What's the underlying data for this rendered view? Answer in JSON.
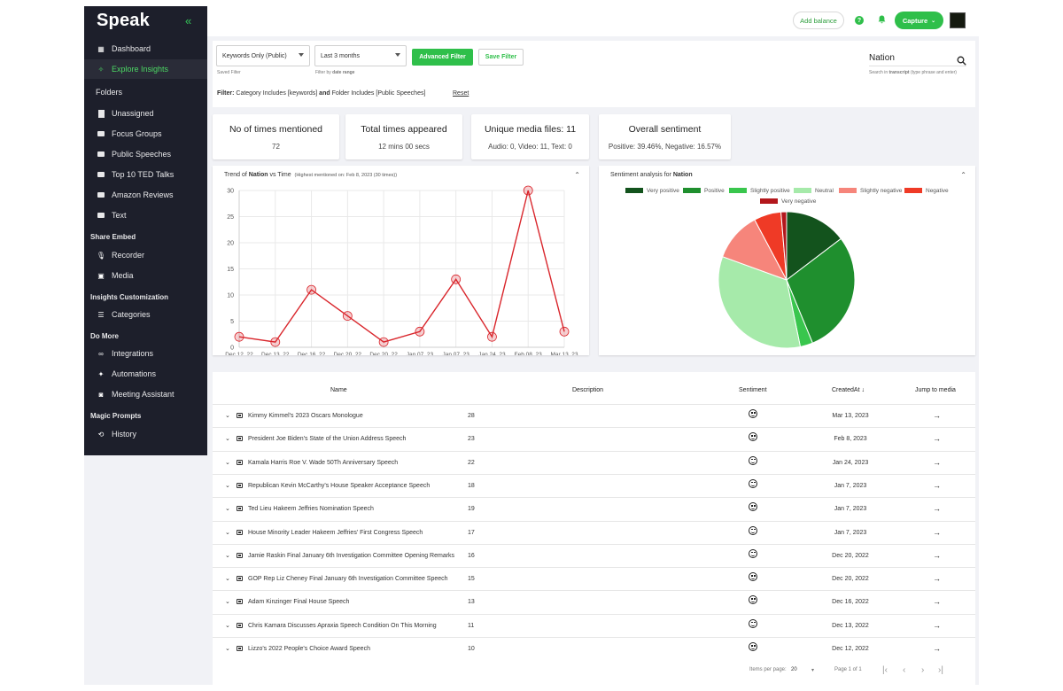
{
  "app": {
    "logo": "Speak"
  },
  "sidebar": {
    "collapse_icon": "double-chevron-left-icon",
    "items": [
      {
        "label": "Dashboard",
        "icon": "grid-icon"
      },
      {
        "label": "Explore Insights",
        "icon": "sparkle-icon",
        "active": true
      }
    ],
    "folders_title": "Folders",
    "folders": [
      "Unassigned",
      "Focus Groups",
      "Public Speeches",
      "Top 10 TED Talks",
      "Amazon Reviews",
      "Text"
    ],
    "share_embed_title": "Share Embed",
    "share_embed": [
      "Recorder",
      "Media"
    ],
    "insights_title": "Insights Customization",
    "insights": [
      "Categories"
    ],
    "do_more_title": "Do More",
    "do_more": [
      "Integrations",
      "Automations",
      "Meeting Assistant"
    ],
    "magic_title": "Magic Prompts",
    "magic": [
      "History"
    ]
  },
  "topbar": {
    "add_balance": "Add balance",
    "capture": "Capture",
    "help": "?"
  },
  "filters": {
    "saved_filter_value": "Keywords Only (Public)",
    "saved_filter_hint": "Saved Filter",
    "date_range_value": "Last 3 months",
    "date_range_hint_pre": "Filter by ",
    "date_range_hint_bold": "date range",
    "advanced_filter": "Advanced Filter",
    "save_filter": "Save Filter",
    "search_value": "Nation",
    "search_hint_pre": "Search in ",
    "search_hint_bold": "transcript",
    "search_hint_post": " (type phrase and enter)",
    "filter_label": "Filter:",
    "filter_text_1": " Category Includes [keywords] ",
    "filter_and": "and",
    "filter_text_2": " Folder Includes [Public Speeches]",
    "reset": "Reset"
  },
  "stats": [
    {
      "title": "No of times mentioned",
      "value": "72"
    },
    {
      "title": "Total times appeared",
      "value": "12 mins 00 secs"
    },
    {
      "title": "Unique media files: 11",
      "value": "Audio: 0, Video: 11, Text: 0"
    },
    {
      "title": "Overall sentiment",
      "value": "Positive: 39.46%,  Negative: 16.57%"
    }
  ],
  "trend_panel": {
    "title_pre": "Trend of ",
    "title_bold": "Nation",
    "title_post": " vs Time",
    "subtitle": "(Highest mentioned on: Feb 8, 2023 (30 times))"
  },
  "sentiment_panel": {
    "title_pre": "Sentiment analysis for ",
    "title_bold": "Nation"
  },
  "chart_data": [
    {
      "type": "line",
      "x": [
        "Dec 12, 22",
        "Dec 13, 22",
        "Dec 16, 22",
        "Dec 20, 22",
        "Dec 20, 22",
        "Jan 07, 23",
        "Jan 07, 23",
        "Jan 24, 23",
        "Feb 08, 23",
        "Mar 13, 23"
      ],
      "series": [
        {
          "values": [
            2,
            1,
            11,
            6,
            1,
            3,
            13,
            2,
            30,
            3
          ]
        }
      ],
      "ylim": [
        0,
        30
      ],
      "yticks": [
        0,
        5,
        10,
        15,
        20,
        25,
        30
      ],
      "color": "#d9262c",
      "grid": true
    },
    {
      "type": "pie",
      "legend": [
        {
          "name": "Very positive",
          "color": "#13531d"
        },
        {
          "name": "Positive",
          "color": "#1f8f2e"
        },
        {
          "name": "Slightly positive",
          "color": "#39c64d"
        },
        {
          "name": "Neutral",
          "color": "#a6eaaa"
        },
        {
          "name": "Slightly negative",
          "color": "#f6857b"
        },
        {
          "name": "Negative",
          "color": "#ef3a26"
        },
        {
          "name": "Very negative",
          "color": "#b3171c"
        }
      ],
      "values": [
        13.2,
        26.2,
        2.7,
        30.4,
        10.5,
        5.8,
        1.2
      ],
      "legend_position": "top"
    }
  ],
  "table": {
    "headers": [
      "Name",
      "Description",
      "Sentiment",
      "CreatedAt",
      "Jump to media"
    ],
    "rows": [
      {
        "name": "Kimmy Kimmel's 2023 Oscars Monologue",
        "count": "28",
        "date": "Mar 13, 2023"
      },
      {
        "name": "President Joe Biden's State of the Union Address Speech",
        "count": "23",
        "date": "Feb 8, 2023"
      },
      {
        "name": "Kamala Harris Roe V. Wade 50Th Anniversary Speech",
        "count": "22",
        "date": "Jan 24, 2023"
      },
      {
        "name": "Republican Kevin McCarthy's House Speaker Acceptance Speech",
        "count": "18",
        "date": "Jan 7, 2023"
      },
      {
        "name": "Ted Lieu Hakeem Jeffries Nomination Speech",
        "count": "19",
        "date": "Jan 7, 2023"
      },
      {
        "name": "House Minority Leader Hakeem Jeffries' First Congress Speech",
        "count": "17",
        "date": "Jan 7, 2023"
      },
      {
        "name": "Jamie Raskin Final January 6th Investigation Committee Opening Remarks",
        "count": "16",
        "date": "Dec 20, 2022"
      },
      {
        "name": "GOP Rep Liz Cheney Final January 6th Investigation Committee Speech",
        "count": "15",
        "date": "Dec 20, 2022"
      },
      {
        "name": "Adam Kinzinger Final House Speech",
        "count": "13",
        "date": "Dec 16, 2022"
      },
      {
        "name": "Chris Kamara Discusses Apraxia Speech Condition On This Morning",
        "count": "11",
        "date": "Dec 13, 2022"
      },
      {
        "name": "Lizzo's 2022 People's Choice Award Speech",
        "count": "10",
        "date": "Dec 12, 2022"
      }
    ],
    "pagination": {
      "items_per_page_label": "Items per page:",
      "items_per_page": "20",
      "page_label": "Page 1 of 1"
    }
  }
}
